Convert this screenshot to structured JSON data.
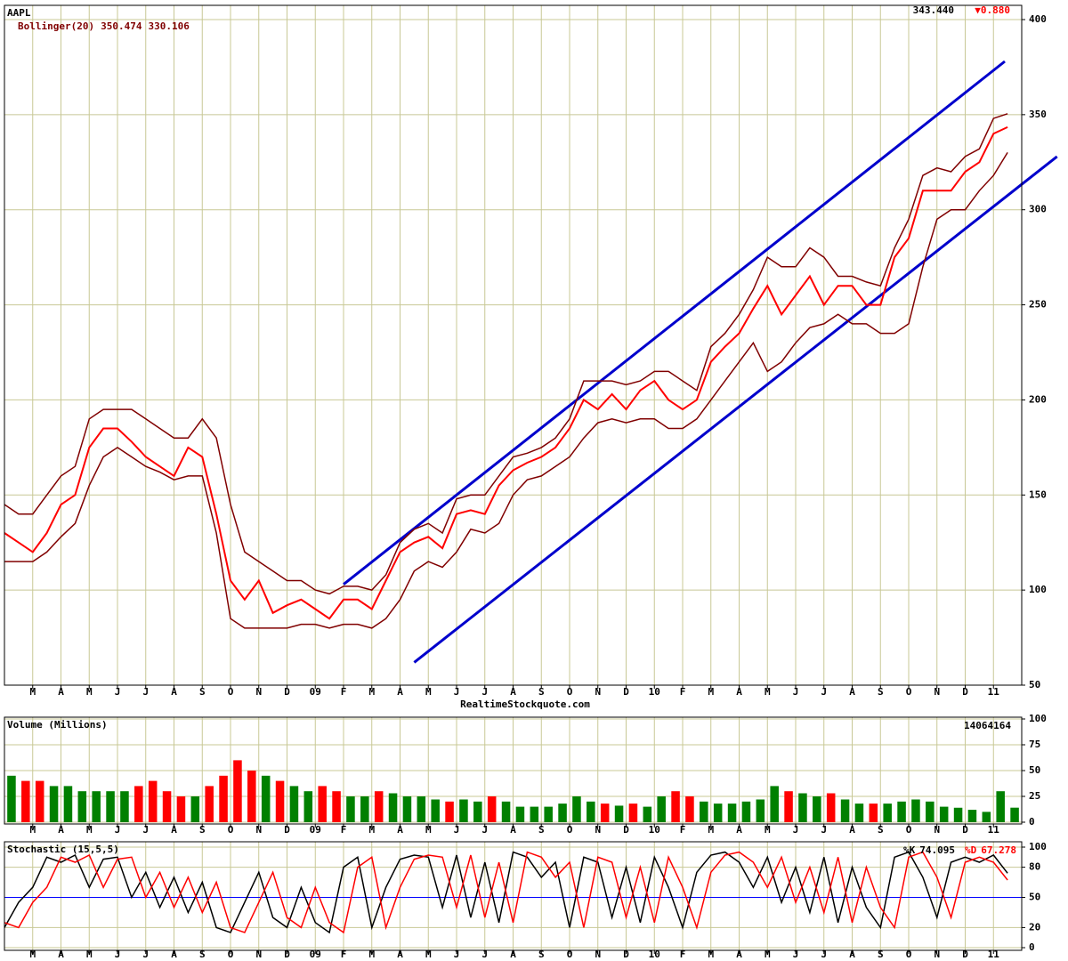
{
  "chart_data": [
    {
      "type": "line",
      "title": "AAPL",
      "quote": {
        "last": "343.440",
        "change": "▼0.880"
      },
      "source": "RealtimeStockquote.com",
      "categories": [
        null,
        null,
        "M",
        null,
        "A",
        null,
        "M",
        null,
        "J",
        null,
        "J",
        null,
        "A",
        null,
        "S",
        null,
        "O",
        null,
        "N",
        null,
        "D",
        null,
        "09",
        null,
        "F",
        null,
        "M",
        null,
        "A",
        null,
        "M",
        null,
        "J",
        null,
        "J",
        null,
        "A",
        null,
        "S",
        null,
        "O",
        null,
        "N",
        null,
        "D",
        null,
        "10",
        null,
        "F",
        null,
        "M",
        null,
        "A",
        null,
        "M",
        null,
        "J",
        null,
        "J",
        null,
        "A",
        null,
        "S",
        null,
        "O",
        null,
        "N",
        null,
        "D",
        null,
        "11",
        null
      ],
      "series": [
        {
          "color": "#ff0000",
          "values": [
            130,
            125,
            120,
            130,
            145,
            150,
            175,
            185,
            185,
            178,
            170,
            165,
            160,
            175,
            170,
            140,
            105,
            95,
            105,
            88,
            92,
            95,
            90,
            85,
            95,
            95,
            90,
            105,
            120,
            125,
            128,
            122,
            140,
            142,
            140,
            155,
            163,
            167,
            170,
            175,
            185,
            200,
            195,
            203,
            195,
            205,
            210,
            200,
            195,
            200,
            220,
            228,
            235,
            248,
            260,
            245,
            255,
            265,
            250,
            260,
            260,
            250,
            250,
            275,
            285,
            310,
            310,
            310,
            320,
            325,
            340,
            343.44
          ]
        },
        {
          "name": "Bollinger(20)",
          "color": "#800000",
          "values": [
            145,
            140,
            140,
            150,
            160,
            165,
            190,
            195,
            195,
            195,
            190,
            185,
            180,
            180,
            190,
            180,
            145,
            120,
            115,
            110,
            105,
            105,
            100,
            98,
            102,
            102,
            100,
            108,
            125,
            132,
            135,
            130,
            148,
            150,
            150,
            160,
            170,
            172,
            175,
            180,
            190,
            210,
            210,
            210,
            208,
            210,
            215,
            215,
            210,
            205,
            228,
            235,
            245,
            258,
            275,
            270,
            270,
            280,
            275,
            265,
            265,
            262,
            260,
            280,
            295,
            318,
            322,
            320,
            328,
            332,
            348,
            350.474
          ]
        },
        {
          "color": "#800000",
          "values": [
            115,
            115,
            115,
            120,
            128,
            135,
            155,
            170,
            175,
            170,
            165,
            162,
            158,
            160,
            160,
            130,
            85,
            80,
            80,
            80,
            80,
            82,
            82,
            80,
            82,
            82,
            80,
            85,
            95,
            110,
            115,
            112,
            120,
            132,
            130,
            135,
            150,
            158,
            160,
            165,
            170,
            180,
            188,
            190,
            188,
            190,
            190,
            185,
            185,
            190,
            200,
            210,
            220,
            230,
            215,
            220,
            230,
            238,
            240,
            245,
            240,
            240,
            235,
            235,
            240,
            270,
            295,
            300,
            300,
            310,
            318,
            330.106
          ]
        }
      ],
      "trendlines": [
        {
          "color": "#0000cc",
          "x": [
            24,
            70.8
          ],
          "values": [
            103,
            378
          ]
        },
        {
          "color": "#0000cc",
          "x": [
            29,
            74.5
          ],
          "values": [
            62,
            328
          ]
        }
      ],
      "ylim": [
        50,
        400
      ],
      "yticks": [
        50,
        100,
        150,
        200,
        250,
        300,
        350,
        400
      ],
      "grid": true,
      "grid_color": "#c8c896"
    },
    {
      "type": "bar",
      "title": "Volume (Millions)",
      "last_volume": 14064164,
      "up_color": "#008000",
      "down_color": "#ff0000",
      "categories": [
        null,
        null,
        "M",
        null,
        "A",
        null,
        "M",
        null,
        "J",
        null,
        "J",
        null,
        "A",
        null,
        "S",
        null,
        "O",
        null,
        "N",
        null,
        "D",
        null,
        "09",
        null,
        "F",
        null,
        "M",
        null,
        "A",
        null,
        "M",
        null,
        "J",
        null,
        "J",
        null,
        "A",
        null,
        "S",
        null,
        "O",
        null,
        "N",
        null,
        "D",
        null,
        "10",
        null,
        "F",
        null,
        "M",
        null,
        "A",
        null,
        "M",
        null,
        "J",
        null,
        "J",
        null,
        "A",
        null,
        "S",
        null,
        "O",
        null,
        "N",
        null,
        "D",
        null,
        "11",
        null
      ],
      "values": [
        45,
        40,
        40,
        35,
        35,
        30,
        30,
        30,
        30,
        35,
        40,
        30,
        25,
        25,
        35,
        45,
        60,
        50,
        45,
        40,
        35,
        30,
        35,
        30,
        25,
        25,
        30,
        28,
        25,
        25,
        22,
        20,
        22,
        20,
        25,
        20,
        15,
        15,
        15,
        18,
        25,
        20,
        18,
        16,
        18,
        15,
        25,
        30,
        25,
        20,
        18,
        18,
        20,
        22,
        35,
        30,
        28,
        25,
        28,
        22,
        18,
        18,
        18,
        20,
        22,
        20,
        15,
        14,
        12,
        10,
        30,
        14.064164
      ],
      "ylim": [
        0,
        100
      ],
      "yticks": [
        0,
        25,
        50,
        75,
        100
      ],
      "grid": true,
      "grid_color": "#c8c896"
    },
    {
      "type": "line",
      "title": "Stochastic (15,5,5)",
      "midline": 50,
      "midline_color": "#0000ff",
      "categories": [
        null,
        null,
        "M",
        null,
        "A",
        null,
        "M",
        null,
        "J",
        null,
        "J",
        null,
        "A",
        null,
        "S",
        null,
        "O",
        null,
        "N",
        null,
        "D",
        null,
        "09",
        null,
        "F",
        null,
        "M",
        null,
        "A",
        null,
        "M",
        null,
        "J",
        null,
        "J",
        null,
        "A",
        null,
        "S",
        null,
        "O",
        null,
        "N",
        null,
        "D",
        null,
        "10",
        null,
        "F",
        null,
        "M",
        null,
        "A",
        null,
        "M",
        null,
        "J",
        null,
        "J",
        null,
        "A",
        null,
        "S",
        null,
        "O",
        null,
        "N",
        null,
        "D",
        null,
        "11",
        null
      ],
      "series": [
        {
          "name": "%K",
          "color": "#000000",
          "values": [
            20,
            45,
            60,
            90,
            85,
            92,
            60,
            88,
            90,
            50,
            75,
            40,
            70,
            35,
            65,
            20,
            15,
            45,
            75,
            30,
            20,
            60,
            25,
            15,
            80,
            90,
            20,
            60,
            88,
            92,
            90,
            40,
            92,
            30,
            85,
            25,
            95,
            90,
            70,
            85,
            20,
            90,
            85,
            30,
            80,
            25,
            90,
            60,
            20,
            75,
            92,
            95,
            85,
            60,
            90,
            45,
            80,
            35,
            90,
            25,
            80,
            40,
            20,
            90,
            95,
            70,
            30,
            85,
            90,
            85,
            92,
            74.095
          ]
        },
        {
          "name": "%D",
          "color": "#ff0000",
          "values": [
            25,
            20,
            45,
            60,
            90,
            85,
            92,
            60,
            88,
            90,
            50,
            75,
            40,
            70,
            35,
            65,
            20,
            15,
            45,
            75,
            30,
            20,
            60,
            25,
            15,
            80,
            90,
            20,
            60,
            88,
            92,
            90,
            40,
            92,
            30,
            85,
            25,
            95,
            90,
            70,
            85,
            20,
            90,
            85,
            30,
            80,
            25,
            90,
            60,
            20,
            75,
            92,
            95,
            85,
            60,
            90,
            45,
            80,
            35,
            90,
            25,
            80,
            40,
            20,
            90,
            95,
            70,
            30,
            85,
            90,
            85,
            67.278
          ]
        }
      ],
      "ylim": [
        0,
        100
      ],
      "yticks": [
        0,
        20,
        50,
        80,
        100
      ],
      "grid": true,
      "grid_color": "#c8c896"
    }
  ]
}
